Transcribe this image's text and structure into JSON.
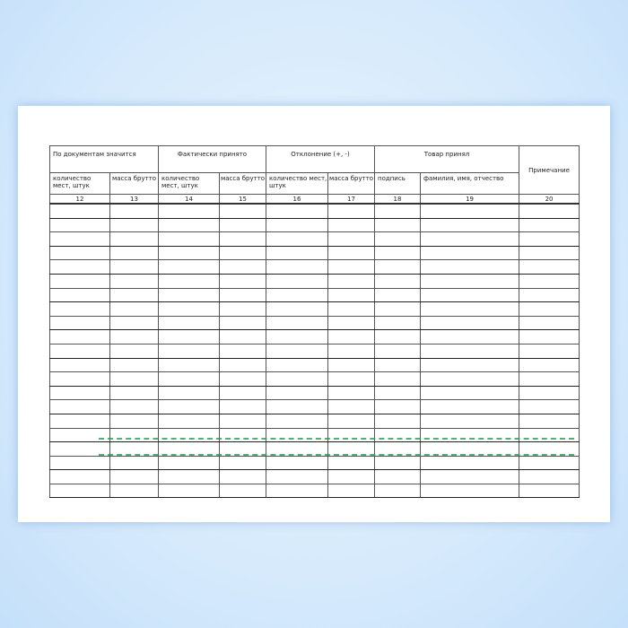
{
  "table": {
    "group_headers": [
      "По документам значится",
      "Фактически принято",
      "Отклонение (+, -)",
      "Товар принял",
      "Примечание"
    ],
    "sub_headers": [
      "количество мест, штук",
      "масса брутто",
      "количество мест, штук",
      "масса брутто",
      "количество мест, штук",
      "масса брутто",
      "подпись",
      "фамилия, имя, отчество"
    ],
    "column_numbers": [
      "12",
      "13",
      "14",
      "15",
      "16",
      "17",
      "18",
      "19",
      "20"
    ],
    "empty_row_count": 21
  },
  "colors": {
    "background": "#d6eafc",
    "artifact_lines": "#2a9a55"
  }
}
